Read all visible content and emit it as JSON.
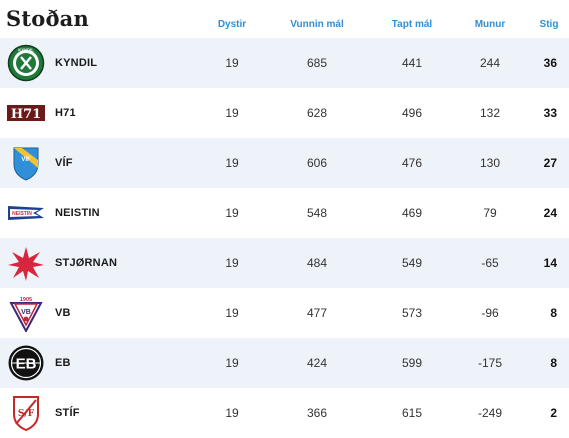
{
  "title": "Stoðan",
  "columns": {
    "played": "Dystir",
    "goals_for": "Vunnin mál",
    "goals_against": "Tapt mál",
    "diff": "Munur",
    "points": "Stig"
  },
  "rows": [
    {
      "team": "KYNDIL",
      "logo": "kyndil-logo",
      "logo_text": "KYNDIL",
      "played": "19",
      "goals_for": "685",
      "goals_against": "441",
      "diff": "244",
      "points": "36"
    },
    {
      "team": "H71",
      "logo": "h71-logo",
      "logo_text": "H71",
      "played": "19",
      "goals_for": "628",
      "goals_against": "496",
      "diff": "132",
      "points": "33"
    },
    {
      "team": "VÍF",
      "logo": "vif-logo",
      "logo_text": "VÍF",
      "played": "19",
      "goals_for": "606",
      "goals_against": "476",
      "diff": "130",
      "points": "27"
    },
    {
      "team": "NEISTIN",
      "logo": "neistin-logo",
      "logo_text": "NEISTIN",
      "played": "19",
      "goals_for": "548",
      "goals_against": "469",
      "diff": "79",
      "points": "24"
    },
    {
      "team": "STJØRNAN",
      "logo": "stjornan-logo",
      "logo_text": "",
      "played": "19",
      "goals_for": "484",
      "goals_against": "549",
      "diff": "-65",
      "points": "14"
    },
    {
      "team": "VB",
      "logo": "vb-logo",
      "logo_text": "VB",
      "logo_year": "1905",
      "played": "19",
      "goals_for": "477",
      "goals_against": "573",
      "diff": "-96",
      "points": "8"
    },
    {
      "team": "EB",
      "logo": "eb-logo",
      "logo_text": "EB",
      "played": "19",
      "goals_for": "424",
      "goals_against": "599",
      "diff": "-175",
      "points": "8"
    },
    {
      "team": "STÍF",
      "logo": "stif-logo",
      "logo_text": "S/F",
      "played": "19",
      "goals_for": "366",
      "goals_against": "615",
      "diff": "-249",
      "points": "2"
    }
  ],
  "colors": {
    "header_text": "#2f8fd8",
    "row_shade": "#eef2f9",
    "kyndil_green": "#1f7a3a",
    "h71_maroon": "#6b1a1a",
    "vif_blue": "#2f8fd8",
    "vif_yellow": "#f2c230",
    "neistin_blue": "#1f3f8f",
    "stjornan_red": "#d7263d",
    "vb_red": "#c0283a",
    "vb_purple": "#3b2a78",
    "eb_black": "#111111",
    "stif_red": "#c62828"
  }
}
